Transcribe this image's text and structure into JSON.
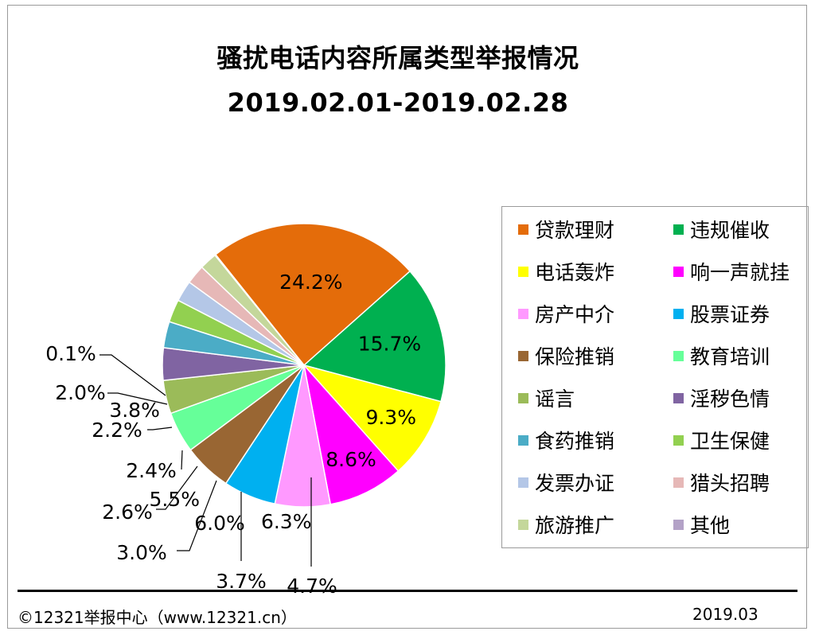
{
  "titles": {
    "main": "骚扰电话内容所属类型举报情况",
    "period": "2019.02.01-2019.02.28"
  },
  "footer": {
    "source": "©12321举报中心（www.12321.cn）",
    "date": "2019.03"
  },
  "chart_data": {
    "type": "pie",
    "title": "骚扰电话内容所属类型举报情况",
    "subtitle": "2019.02.01-2019.02.28",
    "legend_position": "right",
    "slices": [
      {
        "label": "贷款理财",
        "value": 24.2,
        "display": "24.2%",
        "color": "#E46C0A"
      },
      {
        "label": "违规催收",
        "value": 15.7,
        "display": "15.7%",
        "color": "#00B050"
      },
      {
        "label": "电话轰炸",
        "value": 9.3,
        "display": "9.3%",
        "color": "#FFFF00"
      },
      {
        "label": "响一声就挂",
        "value": 8.6,
        "display": "8.6%",
        "color": "#FF00FF"
      },
      {
        "label": "房产中介",
        "value": 6.3,
        "display": "6.3%",
        "color": "#FF99FF"
      },
      {
        "label": "股票证券",
        "value": 6.0,
        "display": "6.0%",
        "color": "#00B0F0"
      },
      {
        "label": "保险推销",
        "value": 5.5,
        "display": "5.5%",
        "color": "#996633"
      },
      {
        "label": "教育培训",
        "value": 4.7,
        "display": "4.7%",
        "color": "#66FF99"
      },
      {
        "label": "谣言",
        "value": 3.8,
        "display": "3.8%",
        "color": "#9BBB59"
      },
      {
        "label": "淫秽色情",
        "value": 3.7,
        "display": "3.7%",
        "color": "#8064A2"
      },
      {
        "label": "食药推销",
        "value": 3.0,
        "display": "3.0%",
        "color": "#4BACC6"
      },
      {
        "label": "卫生保健",
        "value": 2.6,
        "display": "2.6%",
        "color": "#92D050"
      },
      {
        "label": "发票办证",
        "value": 2.4,
        "display": "2.4%",
        "color": "#B4C7E7"
      },
      {
        "label": "猎头招聘",
        "value": 2.2,
        "display": "2.2%",
        "color": "#E6B8B7"
      },
      {
        "label": "旅游推广",
        "value": 2.0,
        "display": "2.0%",
        "color": "#C4D79B"
      },
      {
        "label": "其他",
        "value": 0.1,
        "display": "0.1%",
        "color": "#B3A2C7"
      }
    ]
  }
}
